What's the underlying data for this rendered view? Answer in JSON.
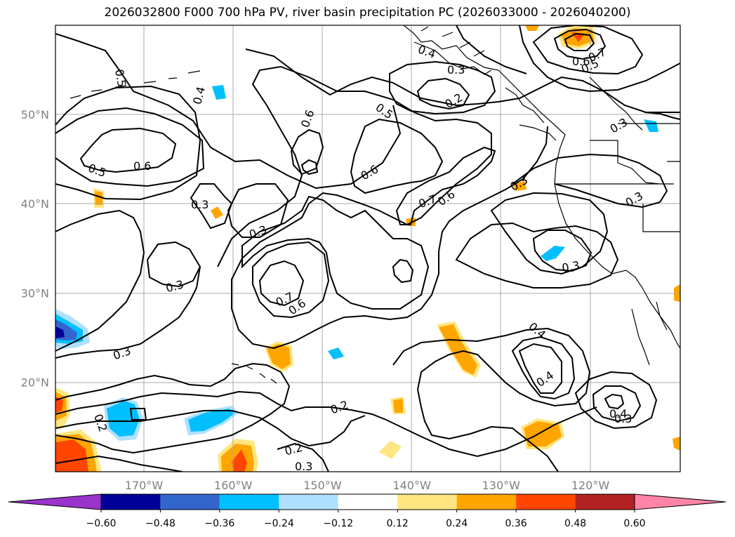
{
  "title": "2026032800 F000 700 hPa PV, river basin precipitation PC (2026033000 - 2026040200)",
  "lat_ticks": [
    {
      "label": "50°N",
      "value": 50
    },
    {
      "label": "40°N",
      "value": 40
    },
    {
      "label": "30°N",
      "value": 30
    },
    {
      "label": "20°N",
      "value": 20
    }
  ],
  "lon_ticks": [
    {
      "label": "170°W",
      "value": -170
    },
    {
      "label": "160°W",
      "value": -160
    },
    {
      "label": "150°W",
      "value": -150
    },
    {
      "label": "140°W",
      "value": -140
    },
    {
      "label": "130°W",
      "value": -130
    },
    {
      "label": "120°W",
      "value": -120
    }
  ],
  "colorbar": {
    "levels": [
      "−0.60",
      "−0.48",
      "−0.36",
      "−0.24",
      "−0.12",
      "0.12",
      "0.24",
      "0.36",
      "0.48",
      "0.60"
    ],
    "colors": [
      "#9933cc",
      "#000099",
      "#3366cc",
      "#00bfff",
      "#b0e0ff",
      "#ffffff",
      "#ffe680",
      "#ffa500",
      "#ff4500",
      "#b22222",
      "#ff85a8"
    ]
  },
  "contour_labels": [
    "0.5",
    "0.4",
    "0.6",
    "0.5",
    "0.6",
    "0.3",
    "0.3",
    "0.3",
    "0.5",
    "0.6",
    "0.4",
    "0.3",
    "0.2",
    "0.7",
    "0.6",
    "0.3",
    "0.2",
    "0.2",
    "0.2",
    "0.3",
    "0.4",
    "0.4",
    "0.3",
    "0.4",
    "0.3",
    "0.3",
    "0.7",
    "0.6",
    "0.7",
    "0.6",
    "0.5",
    "0.7",
    "0.3",
    "0.3"
  ]
}
